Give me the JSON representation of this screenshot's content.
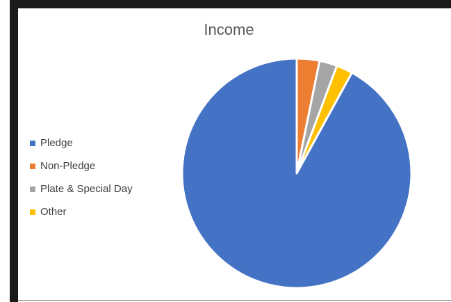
{
  "chart_data": {
    "type": "pie",
    "title": "Income",
    "categories": [
      "Pledge",
      "Non-Pledge",
      "Plate & Special Day",
      "Other"
    ],
    "values": [
      92,
      3.2,
      2.5,
      2.3
    ],
    "colors": [
      "#4472C4",
      "#ED7D31",
      "#A5A5A5",
      "#FFC000"
    ],
    "legend_position": "left"
  }
}
